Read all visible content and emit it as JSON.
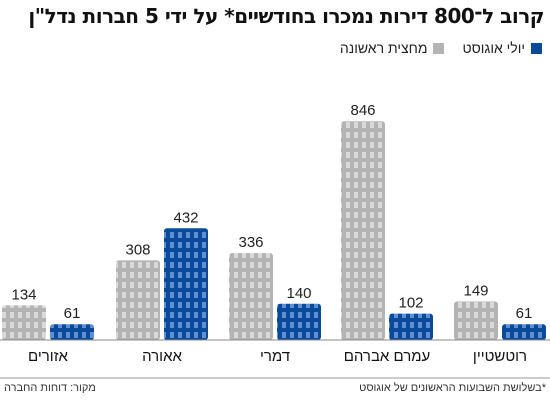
{
  "title": "קרוב ל־800 דירות נמכרו בחודשיים* על ידי 5 חברות נדל\"ן",
  "legend": [
    {
      "name": "יולי אוגוסט",
      "color": "#0b4a9a"
    },
    {
      "name": "מחצית ראשונה",
      "color": "#b3b3b3"
    }
  ],
  "footer": {
    "note": "*בשלושת השבועות הראשונים של אוגוסט",
    "source": "מקור: דוחות החברה"
  },
  "chart_data": {
    "type": "bar",
    "title": "קרוב ל־800 דירות נמכרו בחודשיים* על ידי 5 חברות נדל\"ן",
    "categories": [
      "רוטשטיין",
      "עמרם אברהם",
      "דמרי",
      "אאורה",
      "אזורים"
    ],
    "series": [
      {
        "name": "יולי אוגוסט",
        "values": [
          61,
          102,
          140,
          432,
          61
        ],
        "color": "#0b4a9a"
      },
      {
        "name": "מחצית ראשונה",
        "values": [
          149,
          846,
          336,
          308,
          134
        ],
        "color": "#b3b3b3"
      }
    ],
    "ylim": [
      0,
      870
    ],
    "grid": false,
    "legend_position": "top-right"
  }
}
